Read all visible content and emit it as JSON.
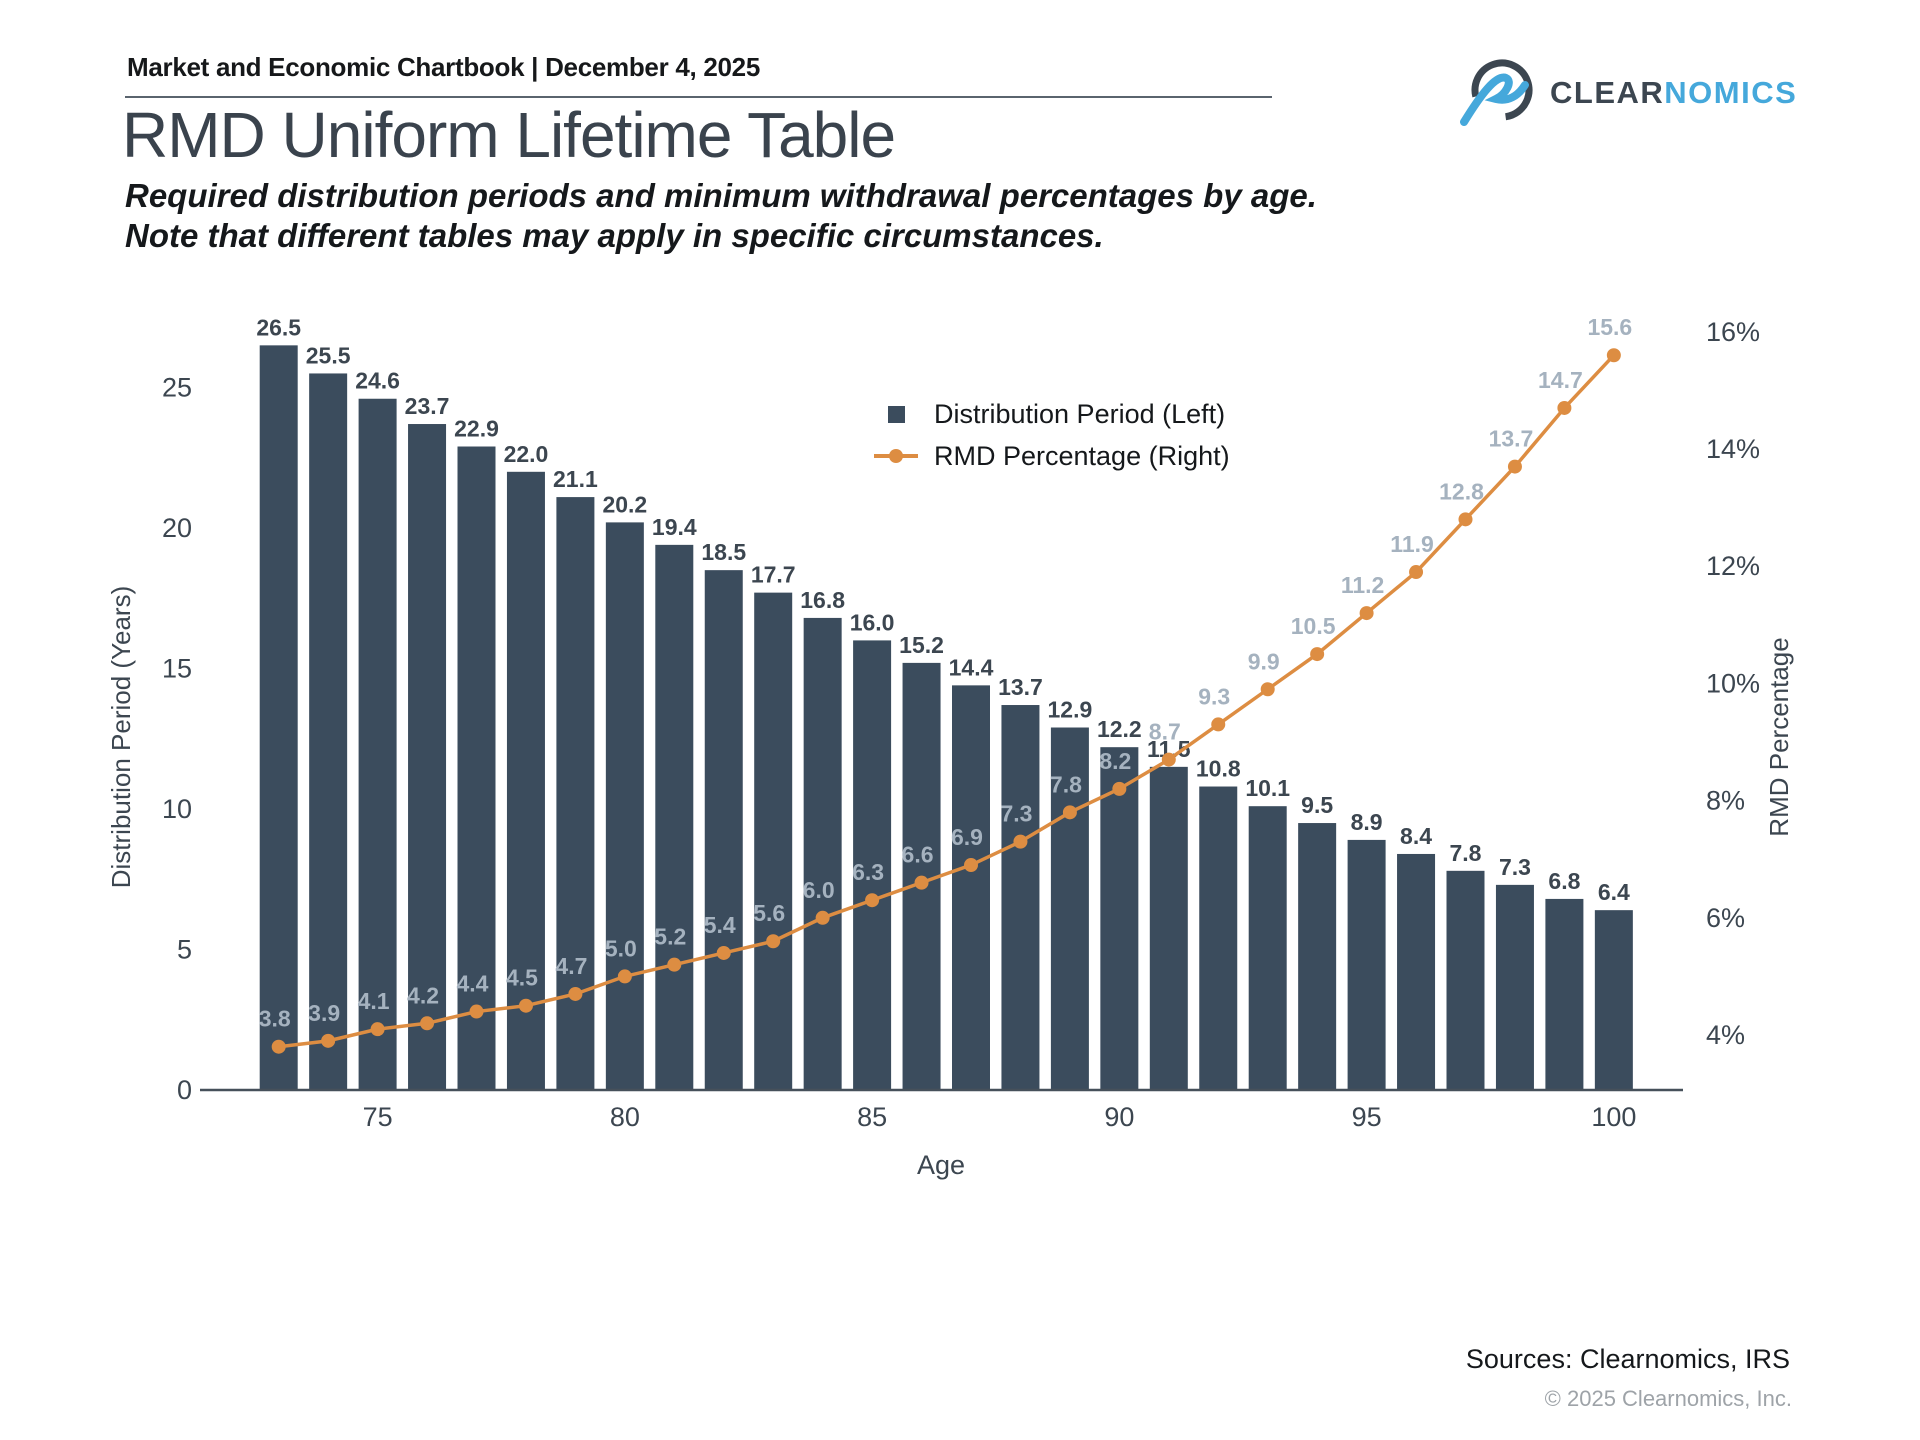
{
  "header": {
    "chartbook_label": "Market and Economic Chartbook | December 4, 2025"
  },
  "logo": {
    "text_primary": "CLEAR",
    "text_secondary": "NOMICS"
  },
  "page": {
    "title": "RMD Uniform Lifetime Table",
    "subtitle_line1": "Required distribution periods and minimum withdrawal percentages by age.",
    "subtitle_line2": "Note that different tables may apply in specific circumstances."
  },
  "legend": {
    "series1": "Distribution Period (Left)",
    "series2": "RMD Percentage (Right)"
  },
  "footer": {
    "sources": "Sources: Clearnomics, IRS",
    "copyright": "© 2025 Clearnomics, Inc."
  },
  "colors": {
    "bar": "#3b4c5d",
    "line": "#dd8d42",
    "bar_label": "#3c4650",
    "line_label": "#a5b2bf",
    "axis_line": "#46505a",
    "tick_text": "#3c4650",
    "logo_blue": "#45a8db",
    "logo_dark": "#3c4650"
  },
  "chart_data": {
    "type": "bar",
    "subtype": "dual-axis bar + line",
    "x": [
      73,
      74,
      75,
      76,
      77,
      78,
      79,
      80,
      81,
      82,
      83,
      84,
      85,
      86,
      87,
      88,
      89,
      90,
      91,
      92,
      93,
      94,
      95,
      96,
      97,
      98,
      99,
      100
    ],
    "xlabel": "Age",
    "x_ticks": [
      75,
      80,
      85,
      90,
      95,
      100
    ],
    "series": [
      {
        "name": "Distribution Period (Left)",
        "type": "bar",
        "axis": "left",
        "values": [
          26.5,
          25.5,
          24.6,
          23.7,
          22.9,
          22.0,
          21.1,
          20.2,
          19.4,
          18.5,
          17.7,
          16.8,
          16.0,
          15.2,
          14.4,
          13.7,
          12.9,
          12.2,
          11.5,
          10.8,
          10.1,
          9.5,
          8.9,
          8.4,
          7.8,
          7.3,
          6.8,
          6.4
        ]
      },
      {
        "name": "RMD Percentage (Right)",
        "type": "line",
        "axis": "right",
        "values": [
          3.8,
          3.9,
          4.1,
          4.2,
          4.4,
          4.5,
          4.7,
          5.0,
          5.2,
          5.4,
          5.6,
          6.0,
          6.3,
          6.6,
          6.9,
          7.3,
          7.8,
          8.2,
          8.7,
          9.3,
          9.9,
          10.5,
          11.2,
          11.9,
          12.8,
          13.7,
          14.7,
          15.6
        ]
      }
    ],
    "left_axis": {
      "label": "Distribution Period (Years)",
      "ticks": [
        0,
        5,
        10,
        15,
        20,
        25
      ],
      "range": [
        0,
        29.3
      ]
    },
    "right_axis": {
      "label": "RMD Percentage",
      "tick_labels": [
        "4%",
        "6%",
        "8%",
        "10%",
        "12%",
        "14%",
        "16%"
      ],
      "tick_values": [
        4,
        6,
        8,
        10,
        12,
        14,
        16
      ],
      "range_pct": [
        3.07,
        16.6
      ]
    },
    "grid": false,
    "legend_position": "upper-middle",
    "data_labels": true
  }
}
